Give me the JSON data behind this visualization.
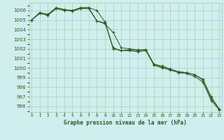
{
  "title": "Graphe pression niveau de la mer (hPa)",
  "background_color": "#d0eeee",
  "grid_color": "#a0c8a8",
  "line_color": "#2d5a1e",
  "x": [
    0,
    1,
    2,
    3,
    4,
    5,
    6,
    7,
    8,
    9,
    10,
    11,
    12,
    13,
    14,
    15,
    16,
    17,
    18,
    19,
    20,
    21,
    22,
    23
  ],
  "line1": [
    1005.0,
    1005.8,
    1005.6,
    1006.3,
    1006.1,
    1006.0,
    1006.3,
    1006.3,
    1006.0,
    1004.8,
    1002.1,
    1001.8,
    1001.9,
    1001.8,
    1001.9,
    1000.3,
    1000.1,
    999.8,
    999.6,
    999.5,
    999.3,
    998.8,
    997.0,
    995.7
  ],
  "line2": [
    1005.0,
    1005.7,
    1005.5,
    1006.2,
    1006.0,
    1006.0,
    1006.2,
    1006.3,
    1004.9,
    1004.7,
    1002.0,
    1001.8,
    1001.8,
    1001.7,
    1001.8,
    1000.3,
    1000.0,
    999.8,
    999.5,
    999.4,
    999.1,
    998.5,
    996.6,
    995.6
  ],
  "line3": [
    1005.0,
    1005.7,
    1005.5,
    1006.2,
    1006.1,
    1005.9,
    1006.2,
    1006.2,
    1004.9,
    1004.6,
    1003.7,
    1002.1,
    1002.0,
    1001.9,
    1001.9,
    1000.4,
    1000.2,
    999.9,
    999.6,
    999.5,
    999.3,
    998.7,
    996.8,
    995.7
  ],
  "ylim": [
    995.4,
    1006.8
  ],
  "ytick_min": 996,
  "ytick_max": 1006,
  "xlim": [
    -0.3,
    23.3
  ],
  "xticks": [
    0,
    1,
    2,
    3,
    4,
    5,
    6,
    7,
    8,
    9,
    10,
    11,
    12,
    13,
    14,
    15,
    16,
    17,
    18,
    19,
    20,
    21,
    22,
    23
  ]
}
